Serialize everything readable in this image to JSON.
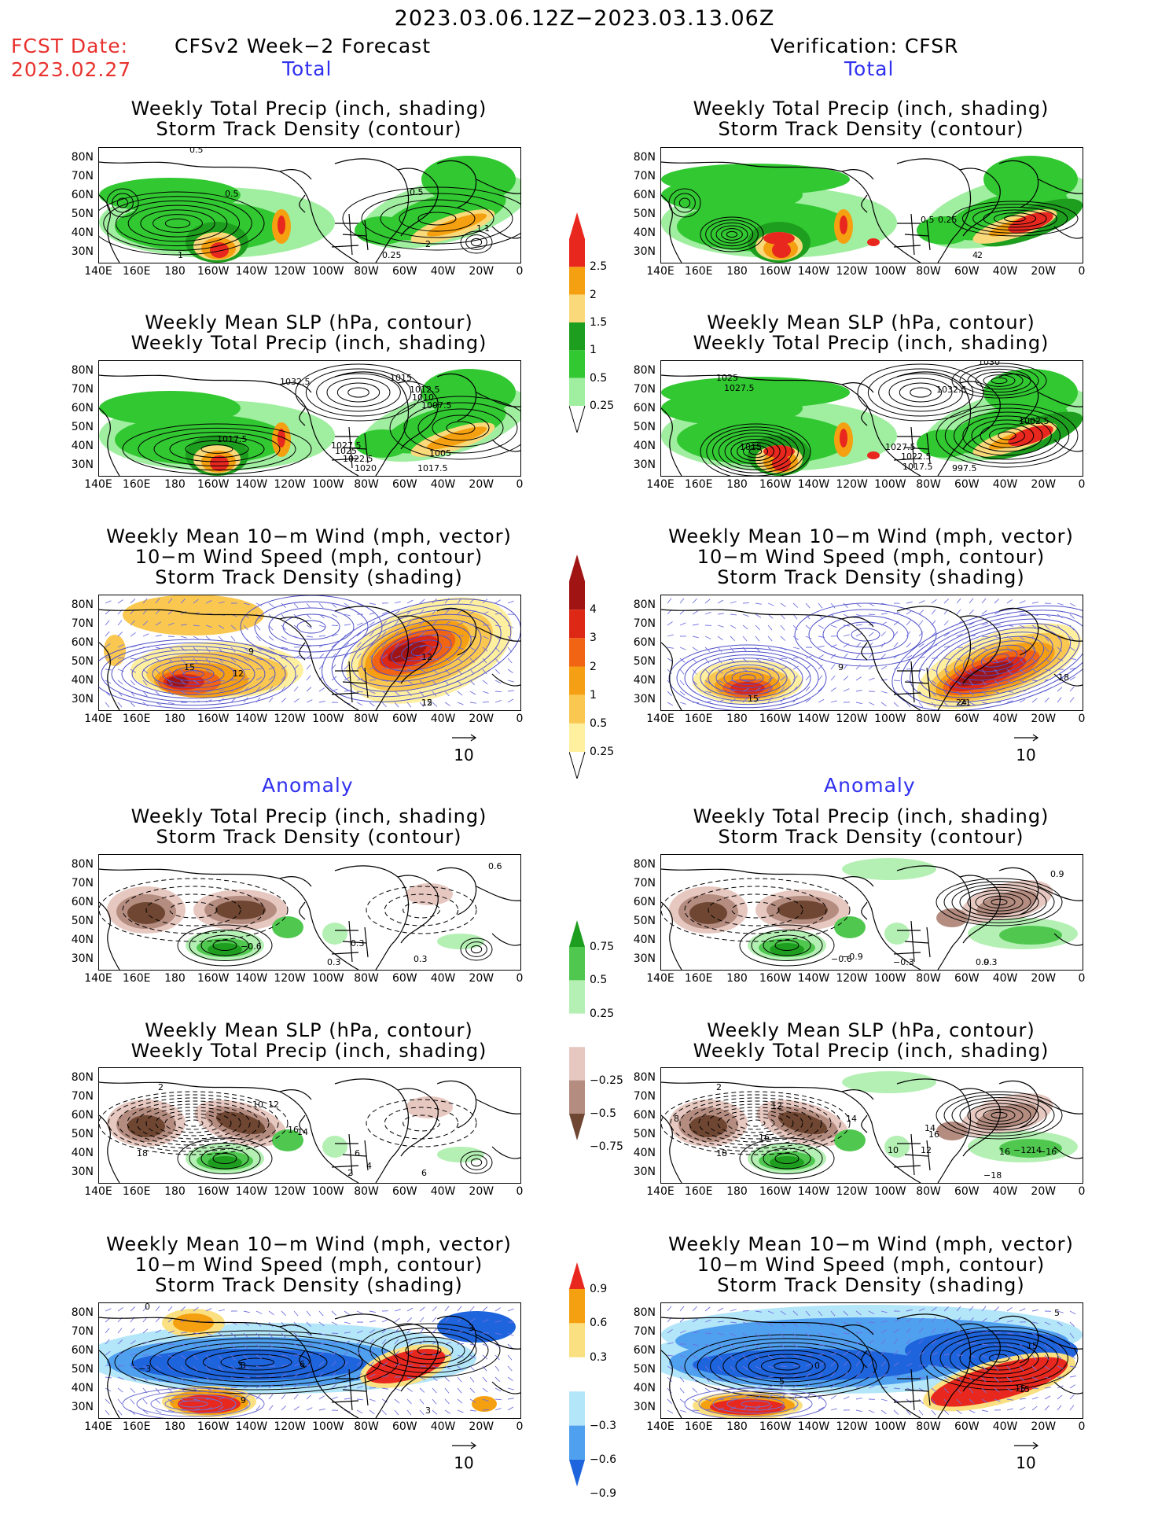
{
  "title": "2023.03.06.12Z−2023.03.13.06Z",
  "fcst_label": "FCST Date:",
  "fcst_date": "2023.02.27",
  "left_header": "CFSv2 Week−2 Forecast",
  "right_header": "Verification: CFSR",
  "total_label": "Total",
  "anomaly_label": "Anomaly",
  "vector_ref": "10",
  "titles": {
    "precip_track": [
      "Weekly Total Precip (inch, shading)",
      "Storm Track Density (contour)"
    ],
    "slp_precip": [
      "Weekly Mean SLP (hPa, contour)",
      "Weekly Total Precip (inch, shading)"
    ],
    "wind_track": [
      "Weekly Mean 10−m Wind (mph, vector)",
      "10−m Wind Speed (mph, contour)",
      "Storm Track Density (shading)"
    ]
  },
  "y_ticks": [
    "80N",
    "70N",
    "60N",
    "50N",
    "40N",
    "30N"
  ],
  "x_ticks": [
    "140E",
    "160E",
    "180",
    "160W",
    "140W",
    "120W",
    "100W",
    "80W",
    "60W",
    "40W",
    "20W",
    "0"
  ],
  "colorbars": {
    "precip_total": {
      "labels": [
        "2.5",
        "2",
        "1.5",
        "1",
        "0.5",
        "0.25"
      ],
      "colors": [
        "#e8281e",
        "#f5a010",
        "#fad97a",
        "#1e9e1e",
        "#32c832",
        "#a0eea0"
      ]
    },
    "track_total": {
      "labels": [
        "4",
        "3",
        "2",
        "1",
        "0.5",
        "0.25"
      ],
      "colors": [
        "#a01414",
        "#dc2814",
        "#f06414",
        "#f5a014",
        "#fac850",
        "#fff0a0"
      ]
    },
    "precip_anom": {
      "labels": [
        "0.75",
        "0.5",
        "0.25",
        "−0.25",
        "−0.5",
        "−0.75"
      ],
      "colors": [
        "#1e9e1e",
        "#50c850",
        "#b4f0b4",
        "#ffffff",
        "#e6c8c0",
        "#b48c80",
        "#6e4632"
      ]
    },
    "track_anom": {
      "labels": [
        "0.9",
        "0.6",
        "0.3",
        "−0.3",
        "−0.6",
        "−0.9"
      ],
      "colors": [
        "#e8281e",
        "#f5a010",
        "#fae080",
        "#ffffff",
        "#b4e6fa",
        "#50a0f0",
        "#1e64dc"
      ]
    }
  },
  "panels": {
    "L1": {
      "labels": [
        "0.5",
        "0.5",
        "0.5",
        "1",
        "2",
        "1",
        "0.25",
        "1"
      ]
    },
    "R1": {
      "labels": [
        "0.5",
        "0.25",
        "4",
        "2"
      ]
    },
    "L2": {
      "labels": [
        "1032.5",
        "1015",
        "1012.5",
        "1010",
        "1007.5",
        "1017.5",
        "1027.5",
        "1025",
        "1022.5",
        "1005",
        "1020",
        "1017.5"
      ]
    },
    "R2": {
      "labels": [
        "1025",
        "1027.5",
        "1030",
        "1032.5",
        "1002.5",
        "1015",
        "1027.5",
        "1022.5",
        "1017.5",
        "997.5"
      ]
    },
    "L3": {
      "labels": [
        "15",
        "12",
        "9",
        "12",
        "12",
        "15"
      ]
    },
    "R3": {
      "labels": [
        "15",
        "9",
        "18",
        "24",
        "21"
      ]
    },
    "L4": {
      "labels": [
        "0.6",
        "−0.6",
        "0.3",
        "0.3",
        "0.3"
      ]
    },
    "R4": {
      "labels": [
        "0.9",
        "−0.9",
        "−0.6",
        "−0.3",
        "0.9",
        "0.3"
      ]
    },
    "L5": {
      "labels": [
        "2",
        "10",
        "12",
        "16",
        "14",
        "18",
        "6",
        "4",
        "2",
        "6"
      ]
    },
    "R5": {
      "labels": [
        "2",
        "12",
        "8",
        "16",
        "14",
        "18",
        "14",
        "16",
        "10",
        "12",
        "−12",
        "14",
        "−18",
        "16",
        "−16"
      ]
    },
    "L6": {
      "labels": [
        "0",
        "3",
        "−3",
        "3",
        "6",
        "9",
        "3",
        "3"
      ]
    },
    "R6": {
      "labels": [
        "0",
        "5",
        "15",
        "5",
        "15",
        "15"
      ]
    }
  }
}
